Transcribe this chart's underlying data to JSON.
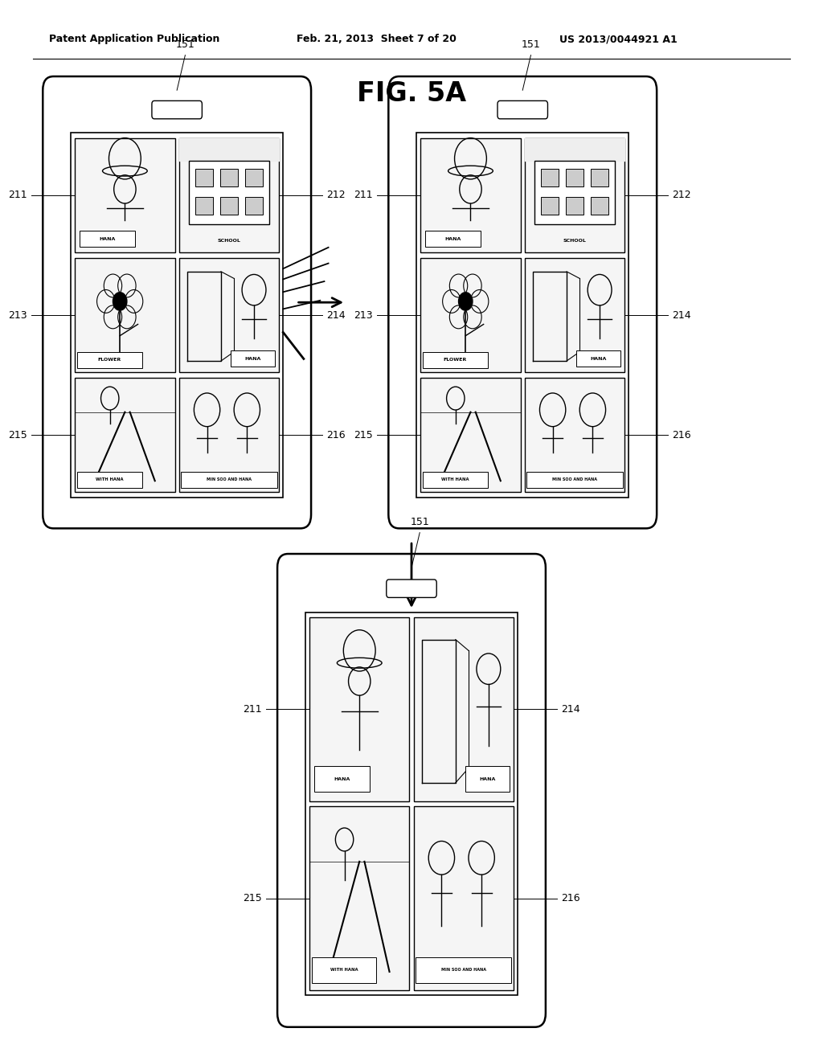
{
  "title": "FIG. 5A",
  "header_left": "Patent Application Publication",
  "header_mid": "Feb. 21, 2013  Sheet 7 of 20",
  "header_right": "US 2013/0044921 A1",
  "bg_color": "#ffffff"
}
